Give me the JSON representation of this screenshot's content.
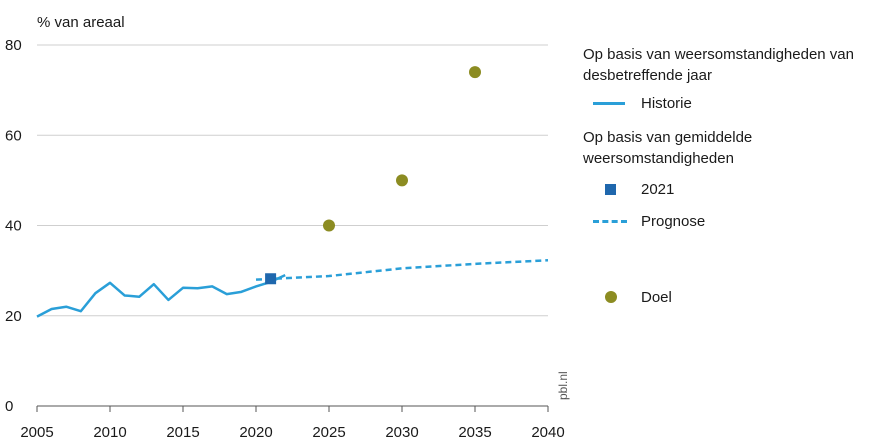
{
  "chart_data": {
    "type": "line",
    "ylabel": "% van areaal",
    "ylim": [
      0,
      80
    ],
    "yticks": [
      0,
      20,
      40,
      60,
      80
    ],
    "xlim": [
      2005,
      2040
    ],
    "xticks": [
      2005,
      2010,
      2015,
      2020,
      2025,
      2030,
      2035,
      2040
    ],
    "grid": "horizontal",
    "legend_placement": "right",
    "source_label": "pbl.nl",
    "legend_groups": [
      {
        "title": "Op basis van weersomstandigheden van desbetreffende jaar",
        "items": [
          {
            "label": "Historie",
            "series": "historie"
          }
        ]
      },
      {
        "title": "Op basis van gemiddelde weersomstandigheden",
        "items": [
          {
            "label": "2021",
            "series": "2021"
          },
          {
            "label": "Prognose",
            "series": "prognose"
          }
        ]
      },
      {
        "title": "",
        "items": [
          {
            "label": "Doel",
            "series": "doel"
          }
        ]
      }
    ],
    "series": [
      {
        "name": "Historie",
        "key": "historie",
        "kind": "line",
        "color": "#2a9fd8",
        "x": [
          2005,
          2006,
          2007,
          2008,
          2009,
          2010,
          2011,
          2012,
          2013,
          2014,
          2015,
          2016,
          2017,
          2018,
          2019,
          2020,
          2021,
          2022
        ],
        "y": [
          19.8,
          21.5,
          22.0,
          21.0,
          25.0,
          27.3,
          24.5,
          24.2,
          27.0,
          23.5,
          26.2,
          26.1,
          26.5,
          24.8,
          25.3,
          26.5,
          27.5,
          29.0
        ]
      },
      {
        "name": "2021",
        "key": "2021",
        "kind": "square",
        "color": "#1f67ad",
        "x": [
          2021
        ],
        "y": [
          28.2
        ]
      },
      {
        "name": "Prognose",
        "key": "prognose",
        "kind": "dashed",
        "color": "#2a9fd8",
        "x": [
          2020,
          2025,
          2030,
          2035,
          2040
        ],
        "y": [
          28.0,
          28.8,
          30.5,
          31.5,
          32.3
        ]
      },
      {
        "name": "Doel",
        "key": "doel",
        "kind": "dot",
        "color": "#8c8c22",
        "x": [
          2025,
          2030,
          2035
        ],
        "y": [
          40,
          50,
          74
        ]
      }
    ]
  }
}
